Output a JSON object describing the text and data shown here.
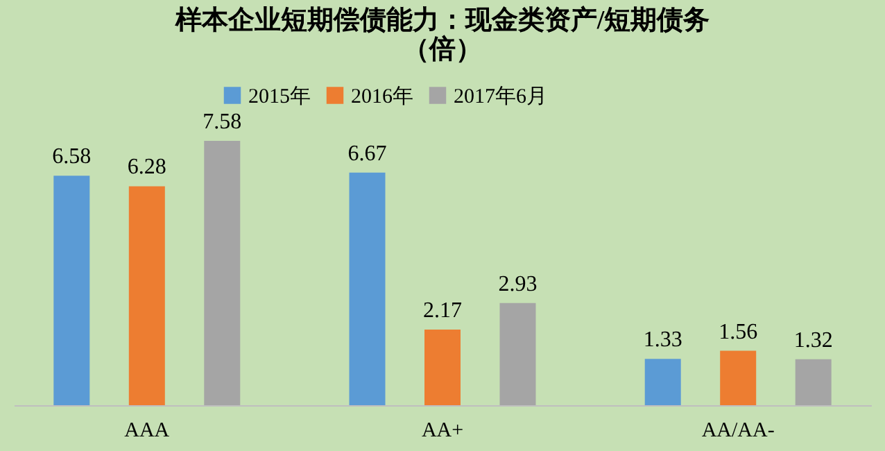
{
  "chart_data": {
    "type": "bar",
    "title": "样本企业短期偿债能力：现金类资产/短期债务（倍）",
    "categories": [
      "AAA",
      "AA+",
      "AA/AA-"
    ],
    "series": [
      {
        "name": "2015年",
        "color": "#5b9bd5",
        "values": [
          6.58,
          6.67,
          1.33
        ]
      },
      {
        "name": "2016年",
        "color": "#ed7d31",
        "values": [
          6.28,
          2.17,
          1.56
        ]
      },
      {
        "name": "2017年6月",
        "color": "#a5a5a5",
        "values": [
          7.58,
          2.93,
          1.32
        ]
      }
    ],
    "data_labels": true,
    "legend": "top",
    "grid": false
  }
}
